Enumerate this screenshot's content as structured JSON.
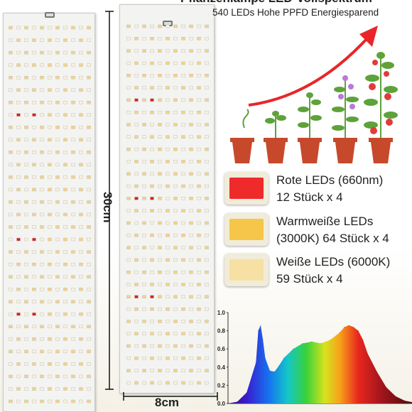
{
  "header": {
    "title": "Pflanzenlampe LED-Vollspektrum",
    "subtitle": "540 LEDs Hohe PPFD Energiesparend"
  },
  "dimensions": {
    "height_label": "30cm",
    "width_label": "8cm"
  },
  "legend": [
    {
      "line1": "Rote LEDs (660nm)",
      "line2": "12 Stück x 4",
      "color": "#ee2a2a"
    },
    {
      "line1": "Warmweiße LEDs",
      "line2": "(3000K) 64 Stück x 4",
      "color": "#f5c64a"
    },
    {
      "line1": "Weiße LEDs (6000K)",
      "line2": "59 Stück x 4",
      "color": "#f6e0a4"
    }
  ],
  "colors": {
    "arrow": "#e8262a",
    "pot": "#c6492c",
    "leaf": "#5ea23a",
    "flower": "#b77ad6",
    "tomato": "#e13b3b",
    "led_warm": "#f2d48a",
    "led_white": "#f7f3e3",
    "led_red": "#d92020"
  },
  "chart_data": {
    "type": "area",
    "title": "",
    "xlabel": "",
    "ylabel": "",
    "ylim": [
      0,
      1.0
    ],
    "y_ticks": [
      "1.0",
      "0.8",
      "0.6",
      "0.4",
      "0.2",
      "0.0"
    ],
    "x": [
      380,
      400,
      420,
      440,
      445,
      450,
      455,
      460,
      470,
      480,
      490,
      500,
      520,
      540,
      560,
      580,
      600,
      620,
      630,
      640,
      650,
      660,
      670,
      680,
      700,
      720,
      740,
      760,
      780
    ],
    "series": [
      {
        "values": [
          0.0,
          0.02,
          0.12,
          0.45,
          0.8,
          0.86,
          0.7,
          0.5,
          0.36,
          0.35,
          0.42,
          0.5,
          0.6,
          0.66,
          0.68,
          0.66,
          0.7,
          0.78,
          0.84,
          0.86,
          0.84,
          0.8,
          0.7,
          0.55,
          0.35,
          0.18,
          0.08,
          0.03,
          0.01
        ]
      }
    ]
  }
}
